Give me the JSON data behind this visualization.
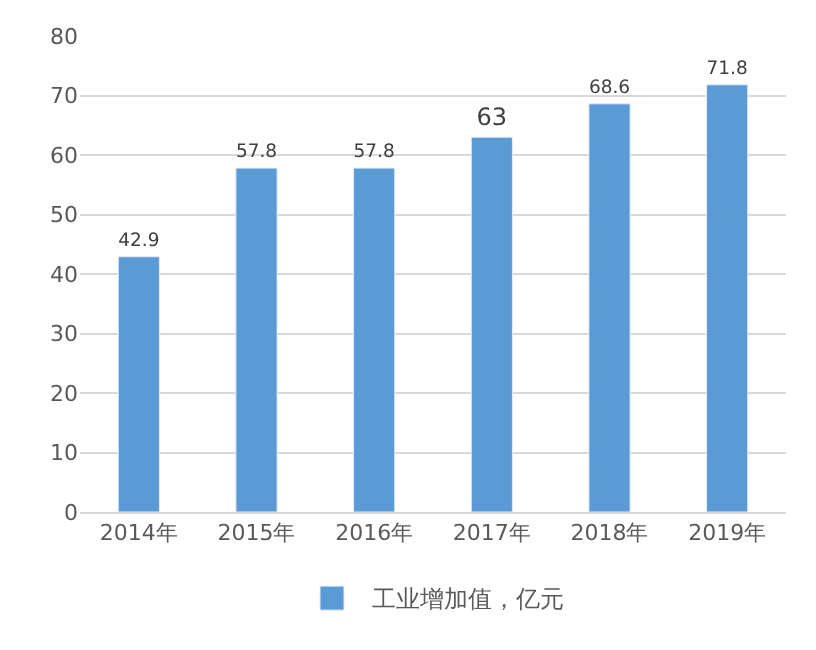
{
  "chart_data": {
    "type": "bar",
    "categories": [
      "2014年",
      "2015年",
      "2016年",
      "2017年",
      "2018年",
      "2019年"
    ],
    "series": [
      {
        "name": "工业增加值，亿元",
        "color": "#5b9bd5",
        "values": [
          42.9,
          57.8,
          57.8,
          63,
          68.6,
          71.8
        ]
      }
    ],
    "ylim": [
      0,
      80
    ],
    "yticks": [
      0,
      10,
      20,
      30,
      40,
      50,
      60,
      70,
      80
    ],
    "grid": "y",
    "legend": "bottom",
    "data_labels": true
  }
}
